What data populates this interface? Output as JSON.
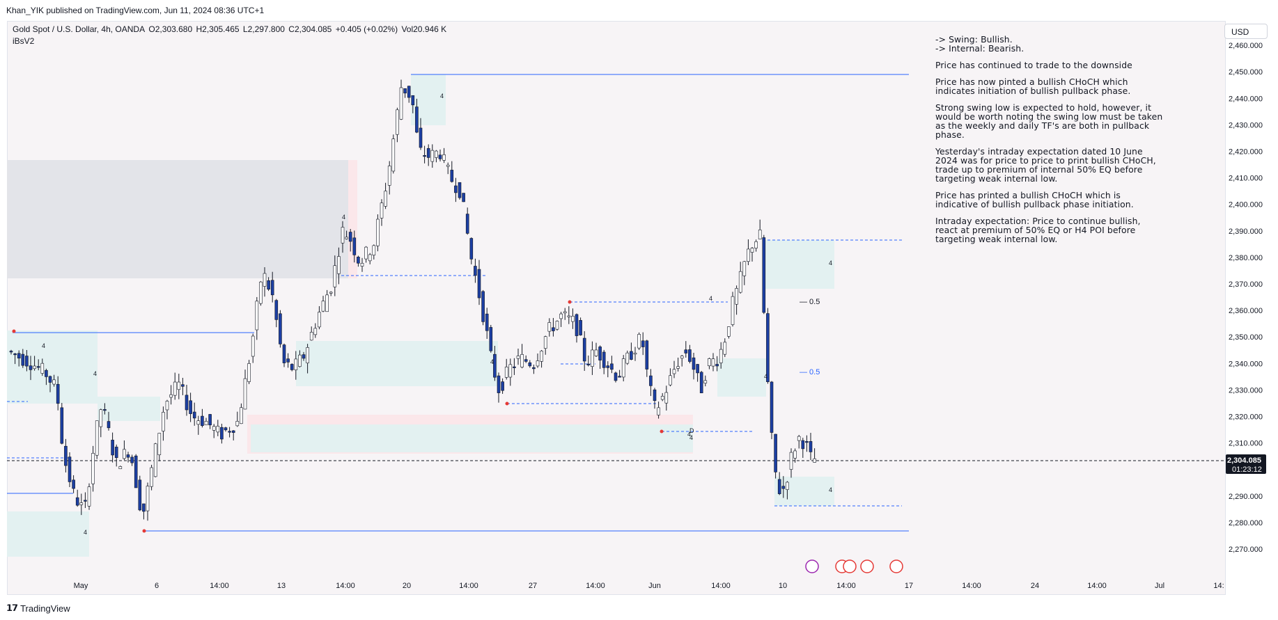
{
  "header": {
    "publisher": "Khan_YIK published on TradingView.com, Jun 11, 2024 08:36 UTC+1"
  },
  "legend": {
    "symbol": "Gold Spot / U.S. Dollar, 4h, OANDA",
    "open": "O2,303.680",
    "high": "H2,305.465",
    "low": "L2,297.800",
    "close": "C2,304.085",
    "change": "+0.405 (+0.02%)",
    "volume": "Vol20.946 K",
    "indicator": "iBsV2"
  },
  "currency": "USD",
  "notes": {
    "swing": "-> Swing:  Bullish.",
    "internal": "-> Internal:  Bearish.",
    "paragraphs": [
      "Price has continued to trade to the downside",
      "Price has now pinted a bullish CHoCH which indicates initiation of bullish pullback phase.",
      "Strong swing low is expected to hold, however, it would be worth noting the swing low must be taken as the weekly and daily TF's are both in pullback phase.",
      "Yesterday's intraday expectation dated 10 June 2024 was for price to price to print bullish CHoCH, trade up to premium of internal 50% EQ before targeting weak internal low.",
      "Price has printed a bullish CHoCH which is indicative of bullish pullback phase initiation.",
      "Intraday expectation: Price to continue bullish, react at premium of 50% EQ or H4 POI before targeting weak internal low."
    ]
  },
  "chart_data": {
    "type": "candlestick",
    "ylim": [
      2265,
      2465
    ],
    "price_ticks": [
      "2,270.000",
      "2,280.000",
      "2,290.000",
      "2,300.000",
      "2,310.000",
      "2,320.000",
      "2,330.000",
      "2,340.000",
      "2,350.000",
      "2,360.000",
      "2,370.000",
      "2,380.000",
      "2,390.000",
      "2,400.000",
      "2,410.000",
      "2,420.000",
      "2,430.000",
      "2,440.000",
      "2,450.000",
      "2,460.000"
    ],
    "time_ticks": [
      "May",
      "6",
      "14:00",
      "13",
      "14:00",
      "20",
      "14:00",
      "27",
      "14:00",
      "Jun",
      "14:00",
      "10",
      "14:00",
      "17",
      "14:00",
      "24",
      "14:00",
      "Jul",
      "14:"
    ],
    "current_price": "2,304.085",
    "countdown": "01:23:12",
    "eq_labels": [
      "0.5",
      "0.5"
    ],
    "zone_labels": [
      "4",
      "4",
      "4",
      "4",
      "4",
      "4",
      "4",
      "4",
      "4",
      "4",
      "4",
      "4"
    ],
    "marker_label": "D",
    "colors": {
      "bull": "#ffffff",
      "bear": "#1c3fa3",
      "wick": "#131722",
      "line": "#2962ff",
      "zone_blue": "#e3f1f1",
      "zone_red": "#fbe7ea",
      "zone_grey": "#e3e4e9"
    }
  },
  "footer": {
    "brand": "TradingView"
  }
}
